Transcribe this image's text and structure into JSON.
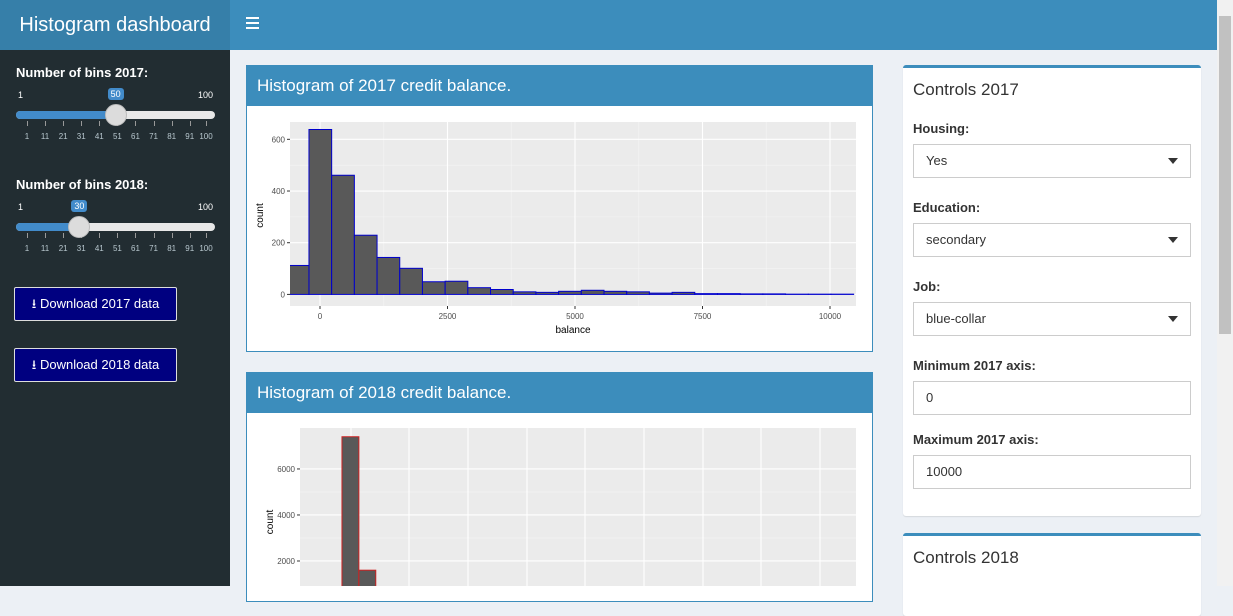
{
  "header": {
    "title": "Histogram dashboard"
  },
  "sidebar": {
    "sliders": [
      {
        "label": "Number of bins 2017:",
        "min": 1,
        "max": 100,
        "value": 50,
        "ticks": [
          1,
          11,
          21,
          31,
          41,
          51,
          61,
          71,
          81,
          91,
          100
        ]
      },
      {
        "label": "Number of bins 2018:",
        "min": 1,
        "max": 100,
        "value": 30,
        "ticks": [
          1,
          11,
          21,
          31,
          41,
          51,
          61,
          71,
          81,
          91,
          100
        ]
      }
    ],
    "buttons": [
      "Download 2017 data",
      "Download 2018 data"
    ]
  },
  "histogram_2017": {
    "title": "Histogram of 2017 credit balance.",
    "chart": {
      "type": "histogram",
      "xlabel": "balance",
      "ylabel": "count",
      "bins": [
        -661,
        -216,
        229,
        674,
        1119,
        1564,
        2009,
        2454,
        2899,
        3344,
        3789,
        4234,
        4679,
        5124,
        5569,
        6014,
        6459,
        6904,
        7349,
        7794,
        8239,
        8684,
        9129,
        9574,
        10019,
        10464
      ],
      "values": [
        112,
        638,
        461,
        229,
        143,
        101,
        49,
        51,
        26,
        19,
        10,
        8,
        12,
        16,
        12,
        10,
        5,
        8,
        3,
        3,
        2,
        2,
        1,
        1,
        1
      ],
      "xlim": [
        -588,
        10510
      ],
      "ylim": [
        -22,
        667
      ],
      "xticks": [
        0,
        2500,
        5000,
        7500,
        10000
      ],
      "yticks": [
        0,
        200,
        400,
        600
      ],
      "fill": "#595959",
      "color": "#0000cc",
      "grid": true
    }
  },
  "histogram_2018": {
    "title": "Histogram of 2018 credit balance.",
    "chart": {
      "type": "histogram",
      "ylabel": "count",
      "bins": [
        5700,
        8800,
        11900
      ],
      "values": [
        7400,
        1600
      ],
      "xlim": [
        -2000,
        100000
      ],
      "ylim": [
        0,
        7780
      ],
      "yticks": [
        2000,
        4000,
        6000
      ],
      "fill": "#595959",
      "color": "#cc2222",
      "grid": true
    }
  },
  "controls_2017": {
    "title": "Controls 2017",
    "fields": [
      {
        "label": "Housing:",
        "value": "Yes"
      },
      {
        "label": "Education:",
        "value": "secondary"
      },
      {
        "label": "Job:",
        "value": "blue-collar"
      }
    ],
    "inputs": [
      {
        "label": "Minimum 2017 axis:",
        "value": "0"
      },
      {
        "label": "Maximum 2017 axis:",
        "value": "10000"
      }
    ]
  },
  "controls_2018": {
    "title": "Controls 2018"
  }
}
